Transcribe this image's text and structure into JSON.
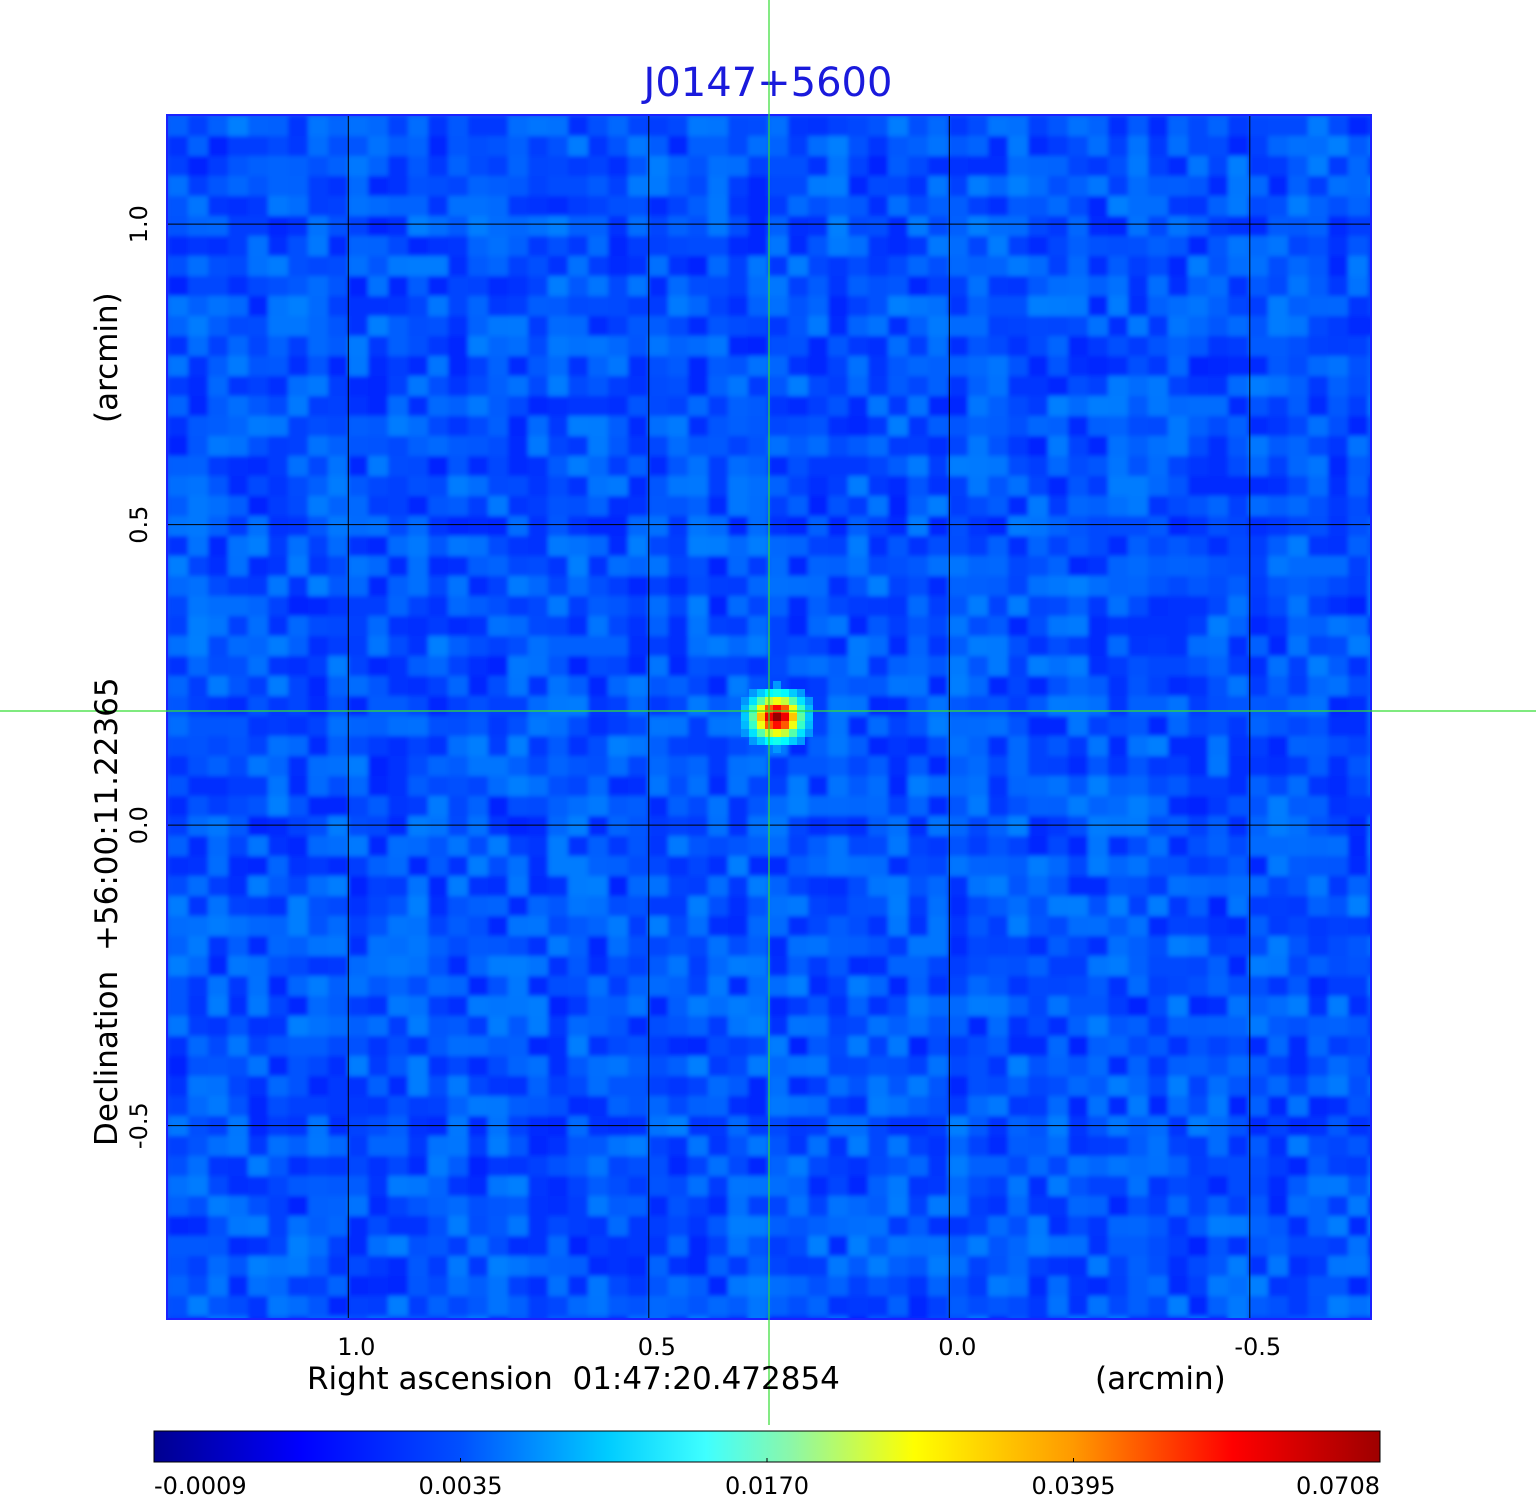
{
  "chart_data": {
    "type": "heatmap",
    "title": "J0147+5600",
    "colormap": "jet",
    "x_axis": {
      "label_left": "Right ascension  01:47:20.472854",
      "label_right": "(arcmin)",
      "ticks": [
        1.0,
        0.5,
        0.0,
        -0.5
      ],
      "tick_labels": [
        "1.0",
        "0.5",
        "0.0",
        "-0.5"
      ],
      "range": [
        1.3,
        -0.7
      ]
    },
    "y_axis": {
      "label_left": "Declination  +56:00:11.22365",
      "label_right": "(arcmin)",
      "ticks": [
        1.0,
        0.5,
        0.0,
        -0.5
      ],
      "tick_labels": [
        "1.0",
        "0.5",
        "0.0",
        "-0.5"
      ],
      "range": [
        -0.82,
        1.18
      ]
    },
    "grid": true,
    "crosshair": {
      "x": 0.3,
      "y": 0.19,
      "color": "#33dd33"
    },
    "source": {
      "x": 0.3,
      "y": 0.19,
      "peak": 0.0708
    },
    "colorbar": {
      "min": -0.0009,
      "max": 0.0708,
      "ticks": [
        -0.0009,
        0.0035,
        0.017,
        0.0395,
        0.0708
      ],
      "tick_labels": [
        "-0.0009",
        "0.0035",
        "0.0170",
        "0.0395",
        "0.0708"
      ],
      "placement": "bottom"
    }
  }
}
